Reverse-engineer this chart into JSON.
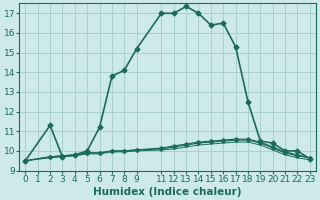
{
  "xlabel": "Humidex (Indice chaleur)",
  "bg_color": "#ceeae8",
  "grid_color": "#aacfcc",
  "line_color": "#1a6b5a",
  "main_curve_x": [
    0,
    2,
    3,
    4,
    5,
    6,
    7,
    8,
    9,
    11,
    12,
    13,
    14,
    15,
    16,
    17,
    18,
    19,
    20,
    21,
    22,
    23
  ],
  "main_curve_y": [
    9.5,
    11.3,
    9.7,
    9.8,
    10.0,
    11.2,
    13.8,
    14.1,
    15.2,
    17.0,
    17.0,
    17.35,
    17.0,
    16.4,
    16.5,
    15.3,
    12.5,
    10.5,
    10.4,
    10.0,
    10.0,
    9.6
  ],
  "flat1_x": [
    0,
    2,
    3,
    4,
    5,
    6,
    7,
    8,
    9,
    11,
    12,
    13,
    14,
    15,
    16,
    17,
    18,
    19,
    20,
    21,
    22,
    23
  ],
  "flat1_y": [
    9.5,
    9.7,
    9.75,
    9.8,
    9.9,
    9.9,
    10.0,
    10.0,
    10.05,
    10.1,
    10.2,
    10.3,
    10.4,
    10.45,
    10.5,
    10.55,
    10.55,
    10.4,
    10.15,
    9.9,
    9.75,
    9.65
  ],
  "flat2_x": [
    0,
    2,
    3,
    4,
    5,
    6,
    7,
    8,
    9,
    11,
    12,
    13,
    14,
    15,
    16,
    17,
    18,
    19,
    20,
    21,
    22,
    23
  ],
  "flat2_y": [
    9.5,
    9.7,
    9.75,
    9.8,
    9.9,
    9.9,
    10.0,
    10.0,
    10.05,
    10.15,
    10.25,
    10.35,
    10.45,
    10.5,
    10.55,
    10.6,
    10.6,
    10.45,
    10.2,
    9.95,
    9.8,
    9.65
  ],
  "flat3_x": [
    0,
    2,
    3,
    4,
    5,
    6,
    7,
    8,
    9,
    11,
    12,
    13,
    14,
    15,
    16,
    17,
    18,
    19,
    20,
    21,
    22,
    23
  ],
  "flat3_y": [
    9.5,
    9.65,
    9.7,
    9.75,
    9.85,
    9.85,
    9.95,
    9.95,
    10.0,
    10.05,
    10.1,
    10.2,
    10.3,
    10.35,
    10.4,
    10.45,
    10.45,
    10.3,
    10.05,
    9.8,
    9.65,
    9.55
  ],
  "ylim": [
    9.0,
    17.5
  ],
  "yticks": [
    9,
    10,
    11,
    12,
    13,
    14,
    15,
    16,
    17
  ],
  "xticks": [
    0,
    1,
    2,
    3,
    4,
    5,
    6,
    7,
    8,
    9,
    11,
    12,
    13,
    14,
    15,
    16,
    17,
    18,
    19,
    20,
    21,
    22,
    23
  ],
  "xlim": [
    -0.5,
    23.5
  ],
  "tick_fontsize": 6.5,
  "xlabel_fontsize": 7.5
}
